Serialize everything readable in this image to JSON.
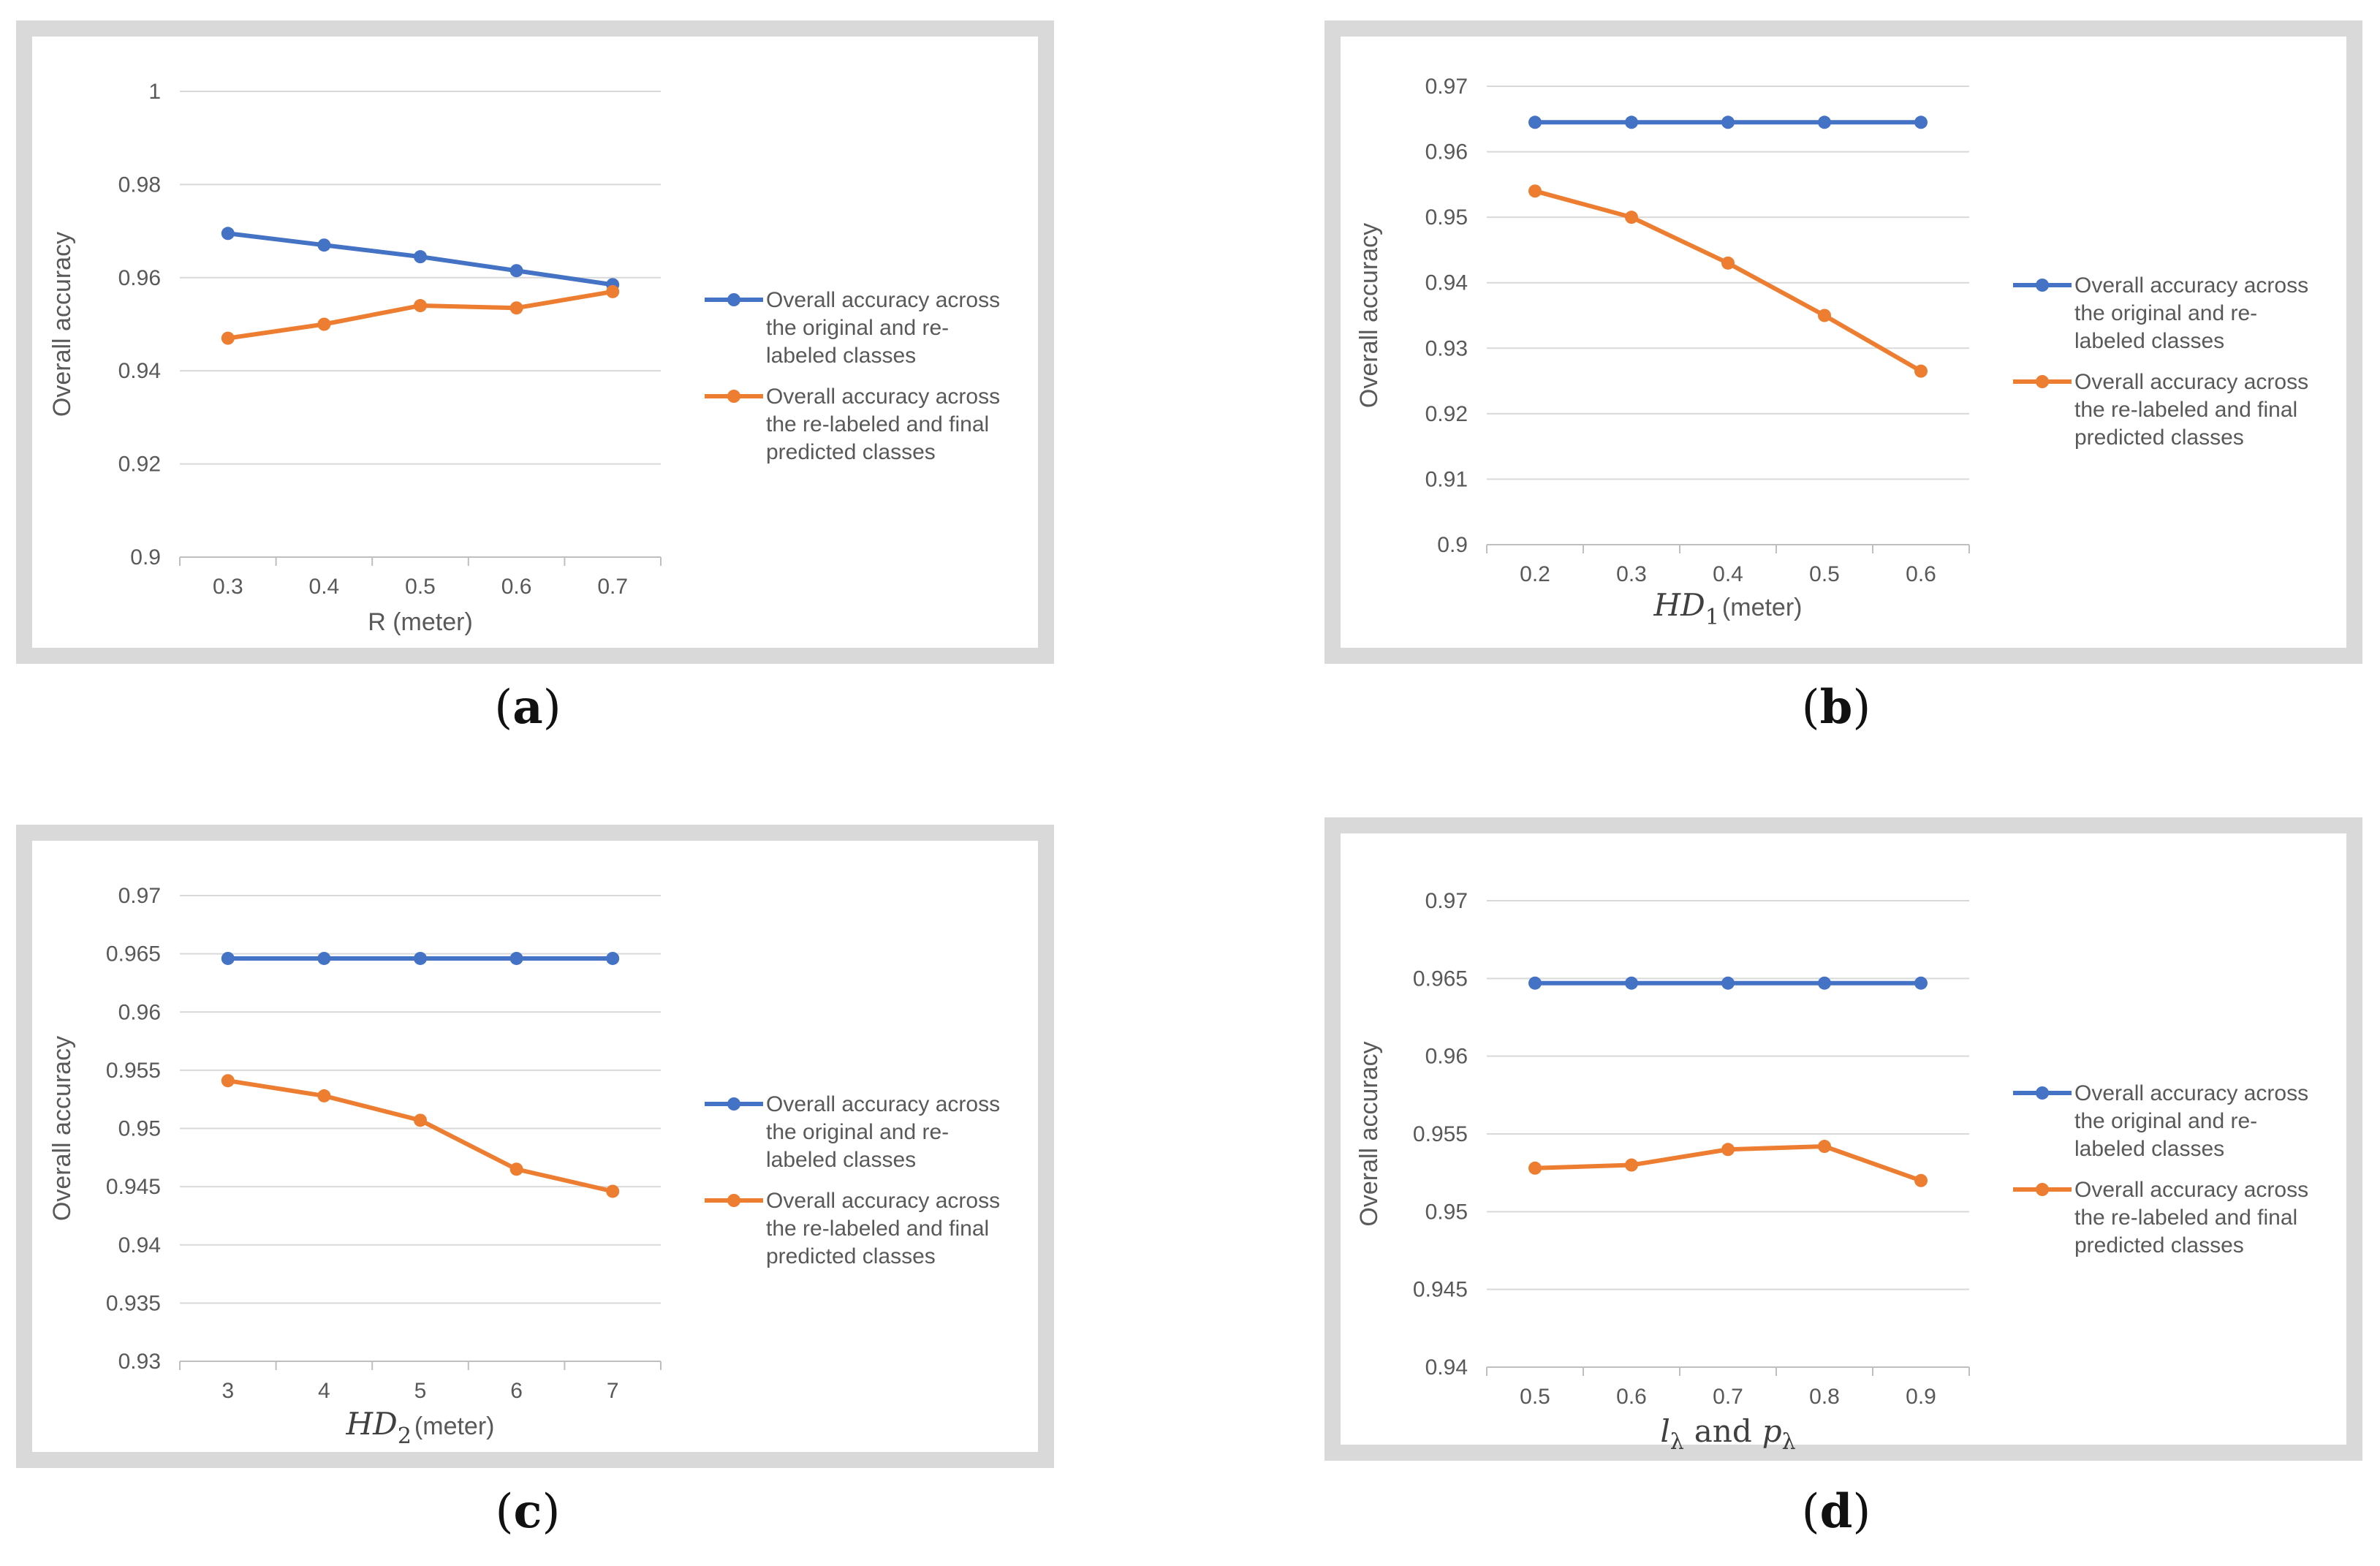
{
  "chart_data": [
    {
      "id": "a",
      "type": "line",
      "caption": "a",
      "xlabel": "R (meter)",
      "ylabel": "Overall accuracy",
      "categories": [
        "0.3",
        "0.4",
        "0.5",
        "0.6",
        "0.7"
      ],
      "ylim": [
        0.9,
        1.0
      ],
      "yticks": [
        0.9,
        0.92,
        0.94,
        0.96,
        0.98,
        1
      ],
      "ytick_labels": [
        "0.9",
        "0.92",
        "0.94",
        "0.96",
        "0.98",
        "1"
      ],
      "grid": true,
      "legend_position": "right",
      "series": [
        {
          "name": "Overall accuracy across the original and re-labeled classes",
          "legend_lines": [
            "Overall accuracy across",
            "the original and re-",
            "labeled classes"
          ],
          "color": "#4472c4",
          "values": [
            0.9695,
            0.967,
            0.9645,
            0.9615,
            0.9585
          ]
        },
        {
          "name": "Overall accuracy across the re-labeled and final predicted classes",
          "legend_lines": [
            "Overall accuracy across",
            "the re-labeled and final",
            "predicted classes"
          ],
          "color": "#ed7d31",
          "values": [
            0.947,
            0.95,
            0.954,
            0.9535,
            0.957
          ]
        }
      ]
    },
    {
      "id": "b",
      "type": "line",
      "caption": "b",
      "xlabel": {
        "math": "HD",
        "sub": "1",
        "unit": "(meter)"
      },
      "ylabel": "Overall accuracy",
      "categories": [
        "0.2",
        "0.3",
        "0.4",
        "0.5",
        "0.6"
      ],
      "ylim": [
        0.9,
        0.97
      ],
      "yticks": [
        0.9,
        0.91,
        0.92,
        0.93,
        0.94,
        0.95,
        0.96,
        0.97
      ],
      "ytick_labels": [
        "0.9",
        "0.91",
        "0.92",
        "0.93",
        "0.94",
        "0.95",
        "0.96",
        "0.97"
      ],
      "grid": true,
      "legend_position": "right",
      "series": [
        {
          "name": "Overall accuracy across the original and re-labeled classes",
          "legend_lines": [
            "Overall accuracy across",
            "the original and re-",
            "labeled classes"
          ],
          "color": "#4472c4",
          "values": [
            0.9645,
            0.9645,
            0.9645,
            0.9645,
            0.9645
          ]
        },
        {
          "name": "Overall accuracy across the re-labeled and final predicted classes",
          "legend_lines": [
            "Overall accuracy across",
            "the re-labeled and final",
            "predicted classes"
          ],
          "color": "#ed7d31",
          "values": [
            0.954,
            0.95,
            0.943,
            0.935,
            0.9265
          ]
        }
      ]
    },
    {
      "id": "c",
      "type": "line",
      "caption": "c",
      "xlabel": {
        "math": "HD",
        "sub": "2",
        "unit": "(meter)"
      },
      "ylabel": "Overall accuracy",
      "categories": [
        "3",
        "4",
        "5",
        "6",
        "7"
      ],
      "ylim": [
        0.93,
        0.97
      ],
      "yticks": [
        0.93,
        0.935,
        0.94,
        0.945,
        0.95,
        0.955,
        0.96,
        0.965,
        0.97
      ],
      "ytick_labels": [
        "0.93",
        "0.935",
        "0.94",
        "0.945",
        "0.95",
        "0.955",
        "0.96",
        "0.965",
        "0.97"
      ],
      "grid": true,
      "legend_position": "right",
      "series": [
        {
          "name": "Overall accuracy across the original and re-labeled classes",
          "legend_lines": [
            "Overall accuracy across",
            "the original and re-",
            "labeled classes"
          ],
          "color": "#4472c4",
          "values": [
            0.9646,
            0.9646,
            0.9646,
            0.9646,
            0.9646
          ]
        },
        {
          "name": "Overall accuracy across the re-labeled and final predicted classes",
          "legend_lines": [
            "Overall accuracy across",
            "the re-labeled and final",
            "predicted classes"
          ],
          "color": "#ed7d31",
          "values": [
            0.9541,
            0.9528,
            0.9507,
            0.9465,
            0.9446
          ]
        }
      ]
    },
    {
      "id": "d",
      "type": "line",
      "caption": "d",
      "xlabel": {
        "l": "l",
        "p": "p",
        "sub": "λ",
        "and": "and"
      },
      "ylabel": "Overall accuracy",
      "categories": [
        "0.5",
        "0.6",
        "0.7",
        "0.8",
        "0.9"
      ],
      "ylim": [
        0.94,
        0.97
      ],
      "yticks": [
        0.94,
        0.945,
        0.95,
        0.955,
        0.96,
        0.965,
        0.97
      ],
      "ytick_labels": [
        "0.94",
        "0.945",
        "0.95",
        "0.955",
        "0.96",
        "0.965",
        "0.97"
      ],
      "grid": true,
      "legend_position": "right",
      "series": [
        {
          "name": "Overall accuracy across the original and re-labeled classes",
          "legend_lines": [
            "Overall accuracy across",
            "the original and re-",
            "labeled classes"
          ],
          "color": "#4472c4",
          "values": [
            0.9647,
            0.9647,
            0.9647,
            0.9647,
            0.9647
          ]
        },
        {
          "name": "Overall accuracy across the re-labeled and final predicted classes",
          "legend_lines": [
            "Overall accuracy across",
            "the re-labeled and final",
            "predicted classes"
          ],
          "color": "#ed7d31",
          "values": [
            0.9528,
            0.953,
            0.954,
            0.9542,
            0.952
          ]
        }
      ]
    }
  ]
}
